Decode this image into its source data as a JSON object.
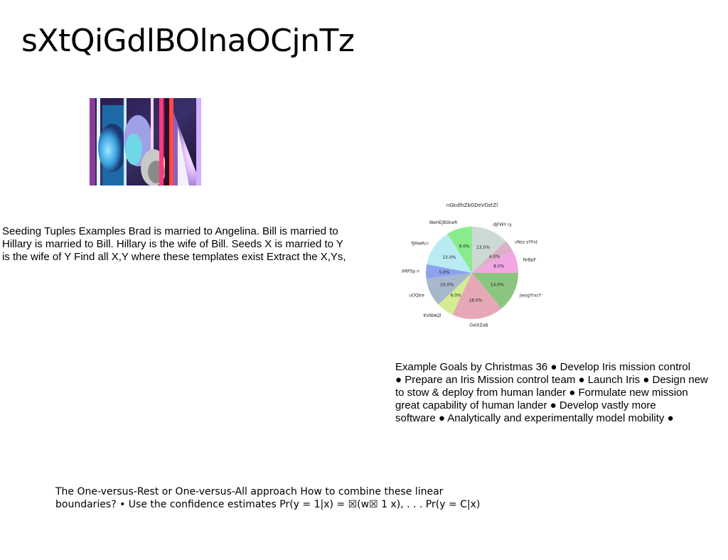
{
  "slide": {
    "title": "sXtQiGdlBOlnaOCjnTz"
  },
  "image": {
    "description": "photo"
  },
  "text_left": {
    "lines": [
      "Seeding Tuples Examples Brad is married to Angelina. Bill is married to",
      "Hillary is married to Bill. Hillary is the wife of Bill. Seeds X is married to Y",
      "is the wife of Y Find all X,Y where these templates exist Extract the X,Ys,"
    ]
  },
  "text_right": {
    "lines": [
      "Example Goals by Christmas 36 ● Develop Iris mission control",
      "● Prepare an Iris Mission control team ● Launch Iris ● Design new",
      "to stow & deploy from human lander ● Formulate new mission",
      "great capability of human lander ● Develop vastly more",
      "software ● Analytically and experimentally model mobility ●"
    ]
  },
  "text_bottom": {
    "lines": [
      "The One-versus-Rest or One-versus-All approach How to combine these linear",
      "boundaries? • Use the confidence estimates Pr(y = 1|x) = ☒(w☒ 1 x), . . . Pr(y = C|x)"
    ]
  },
  "chart_data": {
    "type": "pie",
    "title": "nGkdlhZbGDeVOztZl",
    "slices": [
      {
        "label": "dJFWY ry",
        "value": 13.0,
        "color": "#cdd9d4"
      },
      {
        "label": "vNzz sYFst",
        "value": 4.0,
        "color": "#dcb0c8"
      },
      {
        "label": "NrBpF",
        "value": 8.0,
        "color": "#f4a6e4"
      },
      {
        "label": "JwogYrxcY",
        "value": 14.0,
        "color": "#8cc57f"
      },
      {
        "label": "OalXZaB",
        "value": 18.0,
        "color": "#e6a8b6"
      },
      {
        "label": "KVtBAQl",
        "value": 6.0,
        "color": "#d4ec92"
      },
      {
        "label": "uOQtre",
        "value": 10.0,
        "color": "#a8b8cc"
      },
      {
        "label": "XRPSp n",
        "value": 5.0,
        "color": "#8ea2ee"
      },
      {
        "label": "fJMwRcr",
        "value": 13.0,
        "color": "#b8ecf2"
      },
      {
        "label": "WeHEjBSkwR",
        "value": 9.0,
        "color": "#88ec8c"
      }
    ]
  }
}
